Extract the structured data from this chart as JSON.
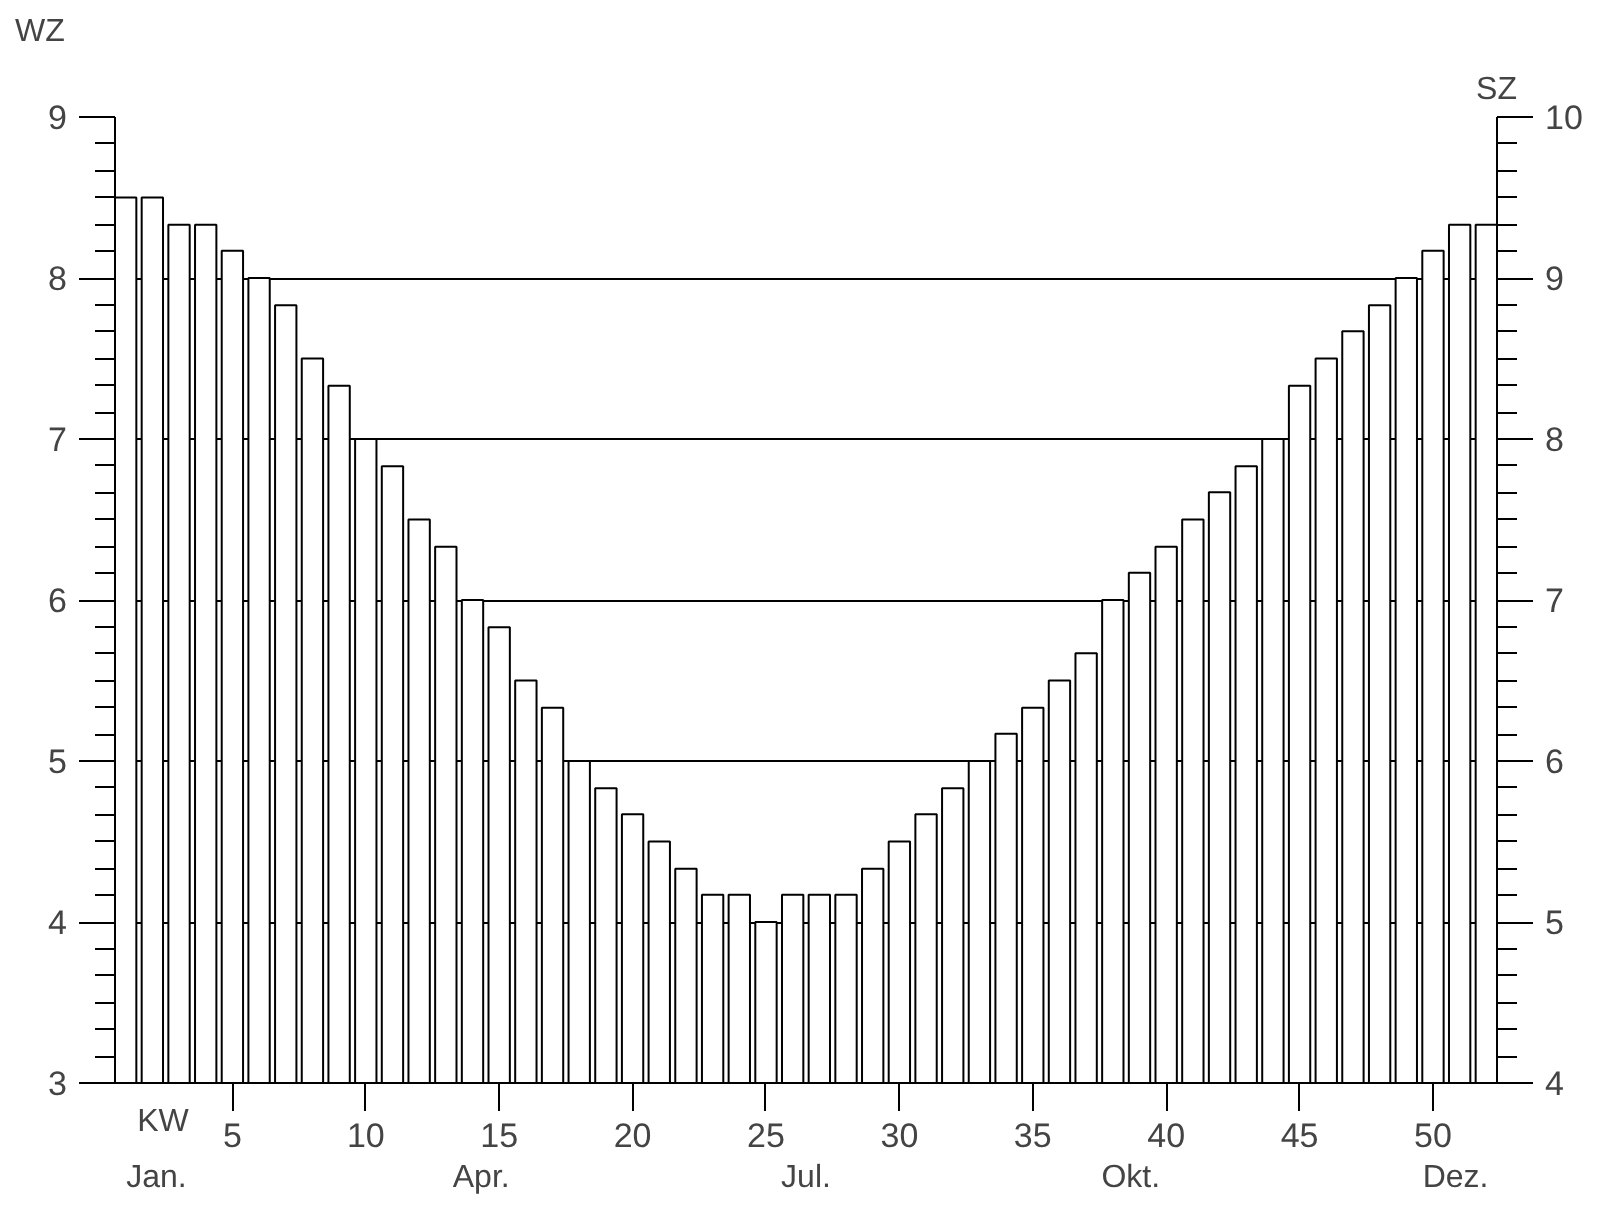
{
  "chart_data": {
    "type": "bar",
    "xlabel": "KW",
    "ylabel": "WZ",
    "y2label": "SZ",
    "x": [
      1,
      2,
      3,
      4,
      5,
      6,
      7,
      8,
      9,
      10,
      11,
      12,
      13,
      14,
      15,
      16,
      17,
      18,
      19,
      20,
      21,
      22,
      23,
      24,
      25,
      26,
      27,
      28,
      29,
      30,
      31,
      32,
      33,
      34,
      35,
      36,
      37,
      38,
      39,
      40,
      41,
      42,
      43,
      44,
      45,
      46,
      47,
      48,
      49,
      50,
      51,
      52
    ],
    "values": [
      8.5,
      8.5,
      8.33,
      8.33,
      8.17,
      8.0,
      7.83,
      7.5,
      7.33,
      7.0,
      6.83,
      6.5,
      6.33,
      6.0,
      5.83,
      5.5,
      5.33,
      5.0,
      4.83,
      4.67,
      4.5,
      4.33,
      4.17,
      4.17,
      4.0,
      4.17,
      4.17,
      4.17,
      4.33,
      4.5,
      4.67,
      4.83,
      5.0,
      5.17,
      5.33,
      5.5,
      5.67,
      6.0,
      6.17,
      6.33,
      6.5,
      6.67,
      6.83,
      7.0,
      7.33,
      7.5,
      7.67,
      7.83,
      8.0,
      8.17,
      8.33,
      8.33
    ],
    "color": "#ffffff",
    "xlim": [
      0.6,
      52.4
    ],
    "xticks": [
      5,
      10,
      15,
      20,
      25,
      30,
      35,
      40,
      45,
      50
    ],
    "ylim": [
      3,
      9
    ],
    "yticks": [
      3,
      4,
      5,
      6,
      7,
      8,
      9
    ],
    "y2lim": [
      4,
      10
    ],
    "y2ticks": [
      4,
      5,
      6,
      7,
      8,
      9,
      10
    ],
    "grid": "y",
    "annotations": [
      "Jan.",
      "Apr.",
      "Jul.",
      "Okt.",
      "Dez."
    ]
  }
}
